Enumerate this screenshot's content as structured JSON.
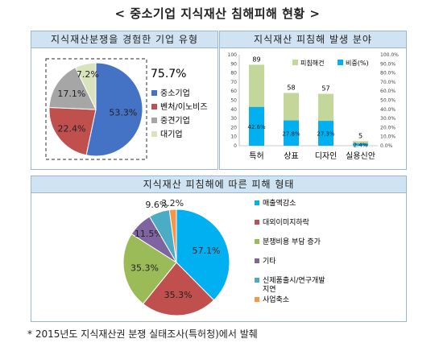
{
  "page": {
    "title": "< 중소기업 지식재산 침해피해 현황 >"
  },
  "footnote": "* 2015년도 지식재산권 분쟁 실태조사(특허청)에서 발췌",
  "colors": {
    "header_bg": "#cfe3f3",
    "border": "#9db7cf"
  },
  "chart_data": [
    {
      "type": "pie",
      "title": "지식재산분쟁을 경험한 기업 유형",
      "categories": [
        "중소기업",
        "벤처/이노비즈",
        "중견기업",
        "대기업"
      ],
      "values": [
        53.3,
        22.4,
        17.1,
        7.2
      ],
      "value_labels": [
        "53.3%",
        "22.4%",
        "17.1%",
        "7.2%"
      ],
      "colors": [
        "#4472c4",
        "#c0504d",
        "#a6a6a6",
        "#d9e4bd"
      ],
      "annotation": "75.7%",
      "legend_position": "right"
    },
    {
      "type": "bar",
      "title": "지식재산 피침해 발생 분야",
      "categories": [
        "특허",
        "상표",
        "디자인",
        "실용신안"
      ],
      "series": [
        {
          "name": "피침해건",
          "values": [
            89,
            58,
            57,
            5
          ],
          "value_labels": [
            "89",
            "58",
            "57",
            "5"
          ],
          "color": "#c4d79b"
        },
        {
          "name": "비중(%)",
          "values": [
            42.6,
            27.8,
            27.3,
            2.4
          ],
          "value_labels": [
            "42.6%",
            "27.8%",
            "27.3%",
            "2.4%"
          ],
          "color": "#00b0f0"
        }
      ],
      "y_left": {
        "range": [
          0,
          100
        ],
        "ticks": [
          "0",
          "10",
          "20",
          "30",
          "40",
          "50",
          "60",
          "70",
          "80",
          "90",
          "100"
        ]
      },
      "y_right": {
        "range": [
          0,
          100
        ],
        "ticks": [
          "0.0%",
          "10.0%",
          "20.0%",
          "30.0%",
          "40.0%",
          "50.0%",
          "60.0%",
          "70.0%",
          "80.0%",
          "90.0%",
          "100.0%"
        ]
      },
      "legend_position": "top"
    },
    {
      "type": "pie",
      "title": "지식재산 피침해에 따른 피해 형태",
      "categories": [
        "매출액감소",
        "대외이미지하락",
        "분쟁비용 부담 증가",
        "기타",
        "신제품출시/연구개발 지연",
        "사업축소"
      ],
      "values": [
        57.1,
        35.3,
        35.3,
        11.5,
        9.6,
        3.2
      ],
      "value_labels": [
        "57.1%",
        "35.3%",
        "35.3%",
        "11.5%",
        "9.6%",
        "3.2%"
      ],
      "colors": [
        "#00b0f0",
        "#c0504d",
        "#9bbb59",
        "#8064a2",
        "#4bacc6",
        "#f79646"
      ],
      "legend_position": "right"
    }
  ]
}
